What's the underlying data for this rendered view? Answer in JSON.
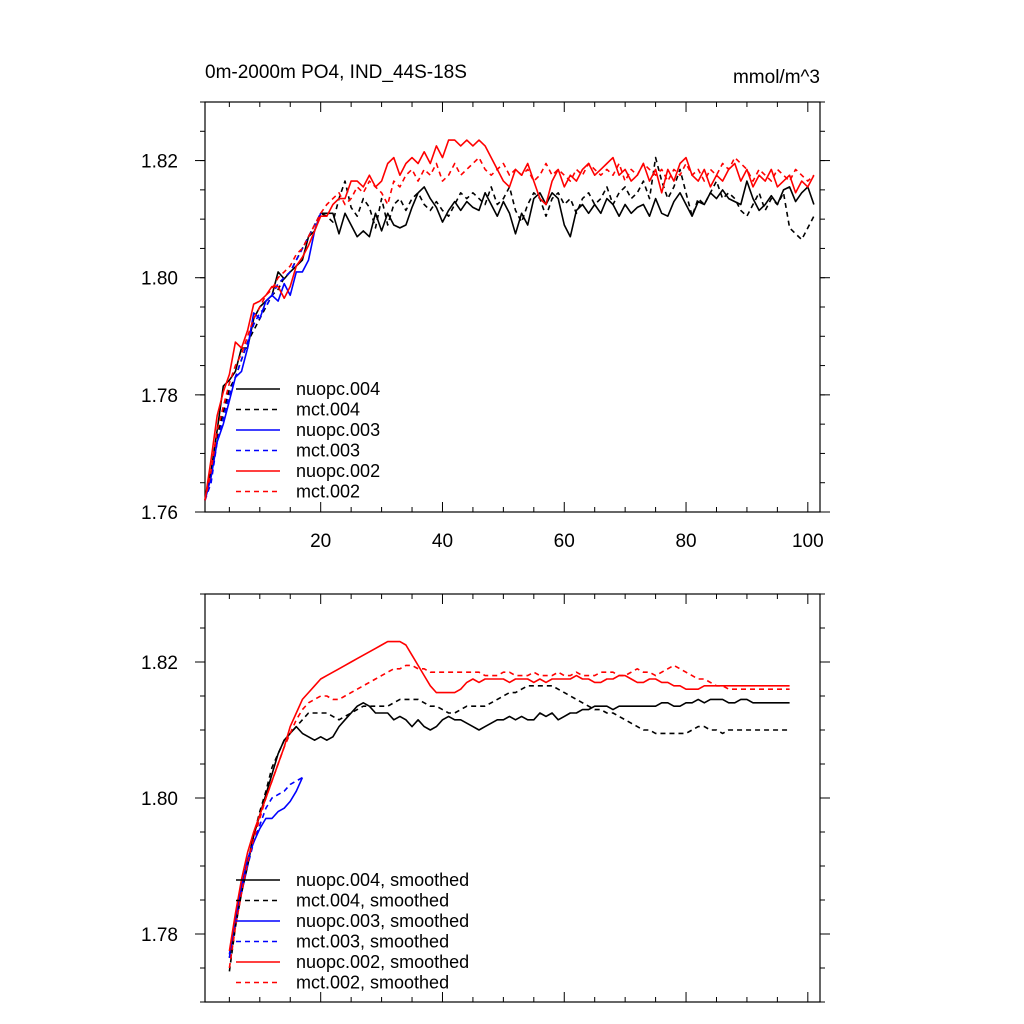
{
  "chart_data": [
    {
      "type": "line",
      "title_left": "0m-2000m PO4, IND_44S-18S",
      "title_right": "mmol/m^3",
      "xlim": [
        1,
        102
      ],
      "ylim": [
        1.76,
        1.83
      ],
      "x_ticks": [
        20,
        40,
        60,
        80,
        100
      ],
      "x_tick_labels": [
        "20",
        "40",
        "60",
        "80",
        "100"
      ],
      "y_ticks": [
        1.76,
        1.78,
        1.8,
        1.82
      ],
      "y_tick_labels": [
        "1.76",
        "1.78",
        "1.80",
        "1.82"
      ],
      "legend_position": "bottom-left",
      "series": [
        {
          "name": "nuopc.004",
          "color": "#000000",
          "dash": "solid",
          "x_start": 1,
          "values": [
            1.762,
            1.767,
            1.774,
            1.7815,
            1.7825,
            1.784,
            1.788,
            1.788,
            1.793,
            1.795,
            1.796,
            1.797,
            1.801,
            1.7998,
            1.801,
            1.802,
            1.803,
            1.807,
            1.808,
            1.811,
            1.811,
            1.811,
            1.8075,
            1.811,
            1.809,
            1.807,
            1.808,
            1.807,
            1.811,
            1.808,
            1.811,
            1.809,
            1.8085,
            1.809,
            1.812,
            1.8145,
            1.8155,
            1.8135,
            1.812,
            1.8095,
            1.8115,
            1.813,
            1.8115,
            1.813,
            1.812,
            1.8115,
            1.8145,
            1.8125,
            1.8105,
            1.813,
            1.811,
            1.8075,
            1.811,
            1.809,
            1.8135,
            1.8145,
            1.8125,
            1.8145,
            1.8135,
            1.809,
            1.807,
            1.8115,
            1.8125,
            1.811,
            1.8125,
            1.811,
            1.8135,
            1.8125,
            1.8105,
            1.8125,
            1.811,
            1.812,
            1.8125,
            1.8105,
            1.8135,
            1.811,
            1.8105,
            1.813,
            1.8145,
            1.8125,
            1.8105,
            1.813,
            1.8125,
            1.8145,
            1.8135,
            1.815,
            1.8135,
            1.813,
            1.8125,
            1.8165,
            1.8135,
            1.8115,
            1.8125,
            1.814,
            1.8125,
            1.815,
            1.8155,
            1.813,
            1.8145,
            1.8155,
            1.8125
          ]
        },
        {
          "name": "mct.004",
          "color": "#000000",
          "dash": "dashed",
          "x_start": 1,
          "values": [
            1.762,
            1.766,
            1.773,
            1.777,
            1.781,
            1.783,
            1.786,
            1.789,
            1.791,
            1.793,
            1.795,
            1.797,
            1.798,
            1.8,
            1.801,
            1.803,
            1.805,
            1.807,
            1.809,
            1.811,
            1.8105,
            1.8095,
            1.8135,
            1.8165,
            1.812,
            1.8105,
            1.8135,
            1.812,
            1.8085,
            1.8135,
            1.809,
            1.8125,
            1.8135,
            1.8115,
            1.8135,
            1.8145,
            1.8125,
            1.8115,
            1.813,
            1.8115,
            1.8105,
            1.8125,
            1.8145,
            1.8135,
            1.8145,
            1.8135,
            1.8125,
            1.8155,
            1.8125,
            1.8135,
            1.8155,
            1.8115,
            1.8095,
            1.8125,
            1.8145,
            1.8135,
            1.8105,
            1.8135,
            1.8145,
            1.8125,
            1.8135,
            1.811,
            1.8135,
            1.8145,
            1.8125,
            1.8135,
            1.8155,
            1.8125,
            1.8145,
            1.8155,
            1.8135,
            1.8145,
            1.8165,
            1.8135,
            1.8205,
            1.8165,
            1.8135,
            1.8155,
            1.8185,
            1.8145,
            1.8105,
            1.8135,
            1.8125,
            1.8145,
            1.8165,
            1.8135,
            1.8145,
            1.8135,
            1.8115,
            1.8105,
            1.8125,
            1.8145,
            1.8115,
            1.8135,
            1.8125,
            1.8145,
            1.8085,
            1.8075,
            1.8065,
            1.8085,
            1.8105
          ]
        },
        {
          "name": "nuopc.003",
          "color": "#0000ff",
          "dash": "solid",
          "x_start": 1,
          "values": [
            1.762,
            1.766,
            1.772,
            1.775,
            1.779,
            1.783,
            1.784,
            1.788,
            1.794,
            1.793,
            1.796,
            1.797,
            1.796,
            1.799,
            1.797,
            1.801,
            1.801,
            1.803,
            1.808,
            1.811
          ]
        },
        {
          "name": "mct.003",
          "color": "#0000ff",
          "dash": "dashed",
          "x_start": 1,
          "values": [
            1.762,
            1.765,
            1.772,
            1.776,
            1.78,
            1.783,
            1.786,
            1.789,
            1.792,
            1.794,
            1.795,
            1.797,
            1.799,
            1.8,
            1.801,
            1.803,
            1.805,
            1.807,
            1.809,
            1.811
          ]
        },
        {
          "name": "nuopc.002",
          "color": "#ff0000",
          "dash": "solid",
          "x_start": 1,
          "values": [
            1.762,
            1.769,
            1.7765,
            1.7805,
            1.7835,
            1.789,
            1.788,
            1.791,
            1.7955,
            1.796,
            1.797,
            1.7985,
            1.7985,
            1.7965,
            1.7985,
            1.802,
            1.8035,
            1.8055,
            1.808,
            1.8105,
            1.8105,
            1.8125,
            1.8135,
            1.8135,
            1.8165,
            1.8165,
            1.8155,
            1.8175,
            1.8155,
            1.8165,
            1.8195,
            1.8205,
            1.8175,
            1.8195,
            1.8205,
            1.8195,
            1.8215,
            1.8195,
            1.8225,
            1.8205,
            1.8235,
            1.8235,
            1.8225,
            1.8235,
            1.8225,
            1.8235,
            1.8225,
            1.8205,
            1.8185,
            1.8165,
            1.8155,
            1.8185,
            1.8175,
            1.8195,
            1.8165,
            1.8135,
            1.8125,
            1.8165,
            1.8185,
            1.8155,
            1.8175,
            1.8165,
            1.8185,
            1.8195,
            1.8175,
            1.8185,
            1.8195,
            1.8205,
            1.8175,
            1.8185,
            1.8165,
            1.8175,
            1.8195,
            1.8165,
            1.8185,
            1.8145,
            1.8185,
            1.8165,
            1.8195,
            1.8205,
            1.8175,
            1.8165,
            1.8185,
            1.8155,
            1.8175,
            1.8165,
            1.8185,
            1.8195,
            1.8165,
            1.8185,
            1.8155,
            1.8175,
            1.8165,
            1.8185,
            1.8155,
            1.8165,
            1.8175,
            1.8145,
            1.8165,
            1.8155,
            1.8175
          ]
        },
        {
          "name": "mct.002",
          "color": "#ff0000",
          "dash": "dashed",
          "x_start": 1,
          "values": [
            1.762,
            1.767,
            1.774,
            1.778,
            1.782,
            1.785,
            1.787,
            1.79,
            1.793,
            1.795,
            1.797,
            1.798,
            1.8,
            1.801,
            1.802,
            1.804,
            1.805,
            1.807,
            1.809,
            1.811,
            1.8125,
            1.8135,
            1.8145,
            1.8125,
            1.8135,
            1.8155,
            1.8145,
            1.8165,
            1.8155,
            1.8145,
            1.8125,
            1.8165,
            1.8155,
            1.8175,
            1.8185,
            1.8165,
            1.8185,
            1.8175,
            1.8195,
            1.8165,
            1.8175,
            1.8195,
            1.8175,
            1.8185,
            1.8195,
            1.8205,
            1.8185,
            1.8175,
            1.8185,
            1.8195,
            1.8175,
            1.8185,
            1.8175,
            1.8185,
            1.8165,
            1.8175,
            1.8195,
            1.8175,
            1.8185,
            1.8175,
            1.8165,
            1.8185,
            1.8175,
            1.8195,
            1.8185,
            1.8175,
            1.8185,
            1.8175,
            1.8195,
            1.8165,
            1.8185,
            1.8175,
            1.8195,
            1.8185,
            1.8175,
            1.8185,
            1.8165,
            1.8185,
            1.8175,
            1.8195,
            1.8175,
            1.8185,
            1.8165,
            1.8185,
            1.8175,
            1.8195,
            1.8185,
            1.8205,
            1.8195,
            1.8185,
            1.8165,
            1.8185,
            1.8175,
            1.8165,
            1.8185,
            1.8175,
            1.8165,
            1.8185,
            1.8175,
            1.8165,
            1.8175
          ]
        }
      ]
    },
    {
      "type": "line",
      "xlim": [
        1,
        102
      ],
      "ylim": [
        1.77,
        1.83
      ],
      "x_ticks": [
        20,
        40,
        60,
        80,
        100
      ],
      "y_ticks": [
        1.78,
        1.8,
        1.82
      ],
      "y_tick_labels": [
        "1.78",
        "1.80",
        "1.82"
      ],
      "legend_position": "bottom-left",
      "series": [
        {
          "name": "nuopc.004, smoothed",
          "color": "#000000",
          "dash": "solid",
          "x_start": 5,
          "values": [
            1.7765,
            1.7815,
            1.7865,
            1.7905,
            1.7945,
            1.7975,
            1.8005,
            1.8035,
            1.8065,
            1.8085,
            1.8095,
            1.8105,
            1.8095,
            1.809,
            1.8085,
            1.809,
            1.8085,
            1.809,
            1.8105,
            1.8115,
            1.8125,
            1.8135,
            1.814,
            1.8135,
            1.8125,
            1.8125,
            1.8125,
            1.8115,
            1.812,
            1.8115,
            1.8105,
            1.8115,
            1.8105,
            1.81,
            1.8105,
            1.8115,
            1.812,
            1.8115,
            1.8115,
            1.811,
            1.8105,
            1.81,
            1.8105,
            1.811,
            1.8115,
            1.8115,
            1.812,
            1.8115,
            1.812,
            1.8115,
            1.8115,
            1.8125,
            1.812,
            1.8125,
            1.8115,
            1.812,
            1.8125,
            1.8125,
            1.813,
            1.813,
            1.8135,
            1.8135,
            1.8135,
            1.813,
            1.8135,
            1.8135,
            1.8135,
            1.8135,
            1.8135,
            1.8135,
            1.8135,
            1.814,
            1.814,
            1.8135,
            1.8135,
            1.814,
            1.814,
            1.8145,
            1.814,
            1.8145,
            1.8145,
            1.8145,
            1.814,
            1.814,
            1.8145,
            1.8145,
            1.814,
            1.814,
            1.814,
            1.814,
            1.814,
            1.814,
            1.814
          ]
        },
        {
          "name": "mct.004, smoothed",
          "color": "#000000",
          "dash": "dashed",
          "x_start": 5,
          "values": [
            1.7745,
            1.781,
            1.786,
            1.79,
            1.7945,
            1.798,
            1.801,
            1.8045,
            1.8065,
            1.8085,
            1.8095,
            1.8105,
            1.8115,
            1.8125,
            1.8125,
            1.8125,
            1.8125,
            1.812,
            1.8115,
            1.812,
            1.8125,
            1.813,
            1.8135,
            1.8135,
            1.8135,
            1.8135,
            1.8135,
            1.814,
            1.8145,
            1.8145,
            1.8145,
            1.8145,
            1.814,
            1.8135,
            1.8135,
            1.813,
            1.8125,
            1.8125,
            1.813,
            1.8135,
            1.8135,
            1.8135,
            1.8135,
            1.814,
            1.8145,
            1.815,
            1.8155,
            1.8155,
            1.816,
            1.8165,
            1.8165,
            1.8165,
            1.8165,
            1.8165,
            1.816,
            1.8155,
            1.815,
            1.8145,
            1.814,
            1.8135,
            1.813,
            1.813,
            1.8125,
            1.8125,
            1.812,
            1.8115,
            1.811,
            1.8105,
            1.81,
            1.81,
            1.8095,
            1.8095,
            1.8095,
            1.8095,
            1.8095,
            1.8095,
            1.81,
            1.8105,
            1.8105,
            1.81,
            1.81,
            1.8095,
            1.81,
            1.81,
            1.81,
            1.81,
            1.81,
            1.81,
            1.81,
            1.81,
            1.81,
            1.81,
            1.81
          ]
        },
        {
          "name": "nuopc.003, smoothed",
          "color": "#0000ff",
          "dash": "solid",
          "x_start": 5,
          "values": [
            1.777,
            1.7825,
            1.787,
            1.791,
            1.7935,
            1.7955,
            1.797,
            1.797,
            1.798,
            1.7985,
            1.7995,
            1.801,
            1.803
          ]
        },
        {
          "name": "mct.003, smoothed",
          "color": "#0000ff",
          "dash": "dashed",
          "x_start": 5,
          "values": [
            1.7765,
            1.7815,
            1.786,
            1.79,
            1.7935,
            1.796,
            1.7985,
            1.8,
            1.8005,
            1.801,
            1.802,
            1.8025,
            1.803
          ]
        },
        {
          "name": "nuopc.002, smoothed",
          "color": "#ff0000",
          "dash": "solid",
          "x_start": 5,
          "values": [
            1.7775,
            1.783,
            1.788,
            1.792,
            1.795,
            1.7975,
            1.8,
            1.8025,
            1.805,
            1.8075,
            1.8105,
            1.8125,
            1.8145,
            1.8155,
            1.8165,
            1.8175,
            1.818,
            1.8185,
            1.819,
            1.8195,
            1.82,
            1.8205,
            1.821,
            1.8215,
            1.822,
            1.8225,
            1.823,
            1.823,
            1.823,
            1.8225,
            1.821,
            1.8195,
            1.818,
            1.8165,
            1.8155,
            1.8155,
            1.8155,
            1.8155,
            1.816,
            1.817,
            1.8175,
            1.817,
            1.8175,
            1.8175,
            1.8175,
            1.8175,
            1.817,
            1.8175,
            1.8175,
            1.8175,
            1.817,
            1.8175,
            1.817,
            1.8175,
            1.8175,
            1.8175,
            1.8175,
            1.818,
            1.8175,
            1.8175,
            1.817,
            1.817,
            1.8175,
            1.8175,
            1.818,
            1.818,
            1.8175,
            1.817,
            1.817,
            1.8175,
            1.8175,
            1.817,
            1.817,
            1.8165,
            1.8165,
            1.816,
            1.816,
            1.816,
            1.8165,
            1.8165,
            1.8165,
            1.8165,
            1.8165,
            1.8165,
            1.8165,
            1.8165,
            1.8165,
            1.8165,
            1.8165,
            1.8165,
            1.8165,
            1.8165,
            1.8165
          ]
        },
        {
          "name": "mct.002, smoothed",
          "color": "#ff0000",
          "dash": "dashed",
          "x_start": 5,
          "values": [
            1.775,
            1.781,
            1.786,
            1.7905,
            1.794,
            1.797,
            1.8,
            1.8025,
            1.805,
            1.8075,
            1.8095,
            1.8115,
            1.813,
            1.814,
            1.8145,
            1.815,
            1.815,
            1.8145,
            1.8145,
            1.815,
            1.8155,
            1.816,
            1.8165,
            1.817,
            1.8175,
            1.818,
            1.8185,
            1.819,
            1.819,
            1.8195,
            1.8195,
            1.819,
            1.819,
            1.8185,
            1.8185,
            1.8185,
            1.8185,
            1.8185,
            1.8185,
            1.8185,
            1.8185,
            1.8185,
            1.818,
            1.818,
            1.818,
            1.8185,
            1.8185,
            1.818,
            1.818,
            1.818,
            1.8185,
            1.818,
            1.818,
            1.818,
            1.8185,
            1.818,
            1.818,
            1.8185,
            1.818,
            1.818,
            1.818,
            1.8185,
            1.8185,
            1.8185,
            1.818,
            1.818,
            1.8185,
            1.819,
            1.8185,
            1.8185,
            1.818,
            1.8185,
            1.819,
            1.8195,
            1.819,
            1.8185,
            1.818,
            1.8175,
            1.8175,
            1.817,
            1.8165,
            1.8165,
            1.816,
            1.816,
            1.816,
            1.816,
            1.816,
            1.816,
            1.816,
            1.816,
            1.816,
            1.816,
            1.816
          ]
        }
      ]
    }
  ]
}
